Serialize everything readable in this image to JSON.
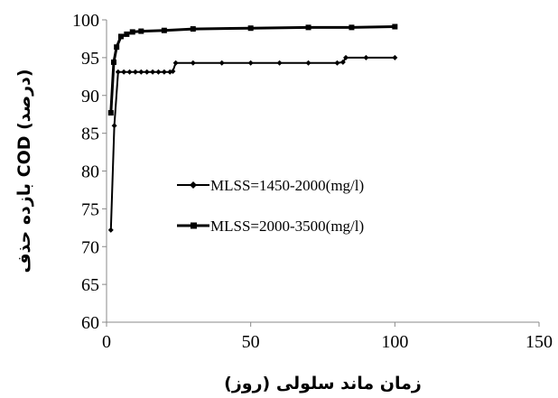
{
  "chart_data": {
    "type": "line",
    "title": "",
    "xlabel": "زمان ماند سلولی (روز)",
    "ylabel": "بازده حذف COD (درصد)",
    "xlim": [
      0,
      150
    ],
    "ylim": [
      60,
      100
    ],
    "xticks": [
      "0",
      "50",
      "100",
      "150"
    ],
    "yticks": [
      "60",
      "65",
      "70",
      "75",
      "80",
      "85",
      "90",
      "95",
      "100"
    ],
    "grid": false,
    "legend_position": "center",
    "series": [
      {
        "name": "MLSS=1450-2000(mg/l)",
        "marker": "diamond",
        "points": [
          [
            1.5,
            72.2
          ],
          [
            2.7,
            86.0
          ],
          [
            4,
            93.1
          ],
          [
            6,
            93.1
          ],
          [
            8,
            93.1
          ],
          [
            10,
            93.1
          ],
          [
            12,
            93.1
          ],
          [
            14,
            93.1
          ],
          [
            16,
            93.1
          ],
          [
            18,
            93.1
          ],
          [
            20,
            93.1
          ],
          [
            22,
            93.1
          ],
          [
            23,
            93.2
          ],
          [
            24,
            94.3
          ],
          [
            30,
            94.3
          ],
          [
            40,
            94.3
          ],
          [
            50,
            94.3
          ],
          [
            60,
            94.3
          ],
          [
            70,
            94.3
          ],
          [
            80,
            94.3
          ],
          [
            82,
            94.4
          ],
          [
            83,
            95.0
          ],
          [
            90,
            95.0
          ],
          [
            100,
            95.0
          ]
        ]
      },
      {
        "name": "MLSS=2000-3500(mg/l)",
        "marker": "square",
        "points": [
          [
            1.5,
            87.7
          ],
          [
            2.5,
            94.4
          ],
          [
            3.5,
            96.4
          ],
          [
            5,
            97.8
          ],
          [
            7,
            98.1
          ],
          [
            9,
            98.4
          ],
          [
            12,
            98.5
          ],
          [
            20,
            98.6
          ],
          [
            30,
            98.8
          ],
          [
            50,
            98.9
          ],
          [
            70,
            99.0
          ],
          [
            85,
            99.0
          ],
          [
            100,
            99.1
          ]
        ]
      }
    ]
  }
}
